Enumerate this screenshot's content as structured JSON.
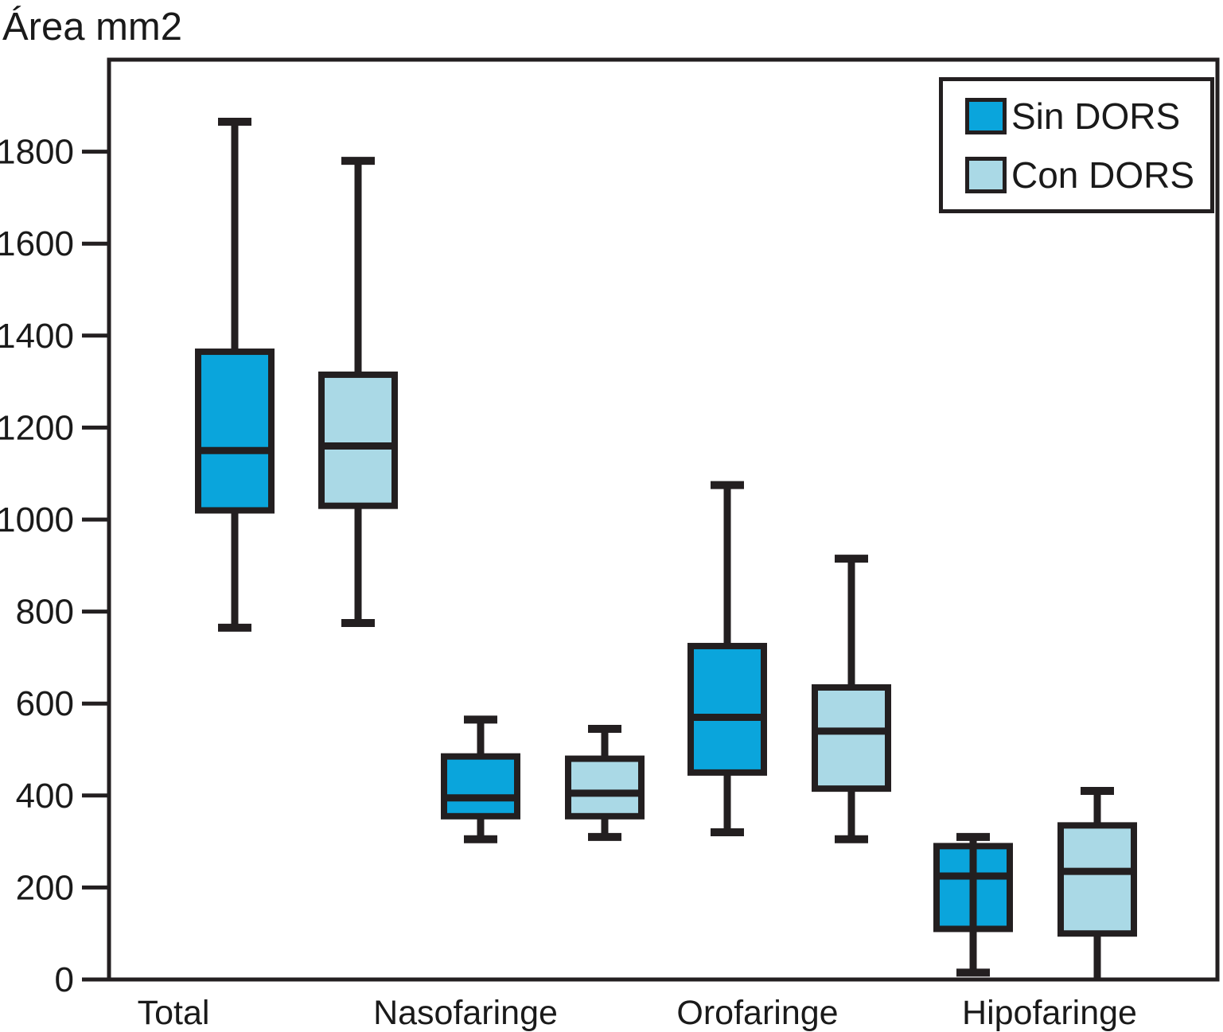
{
  "chart_data": {
    "type": "boxplot",
    "title": "Área mm2",
    "ylabel": "Área mm2",
    "xlabel": "",
    "categories": [
      "Total",
      "Nasofaringe",
      "Orofaringe",
      "Hipofaringe"
    ],
    "series": [
      {
        "name": "Sin DORS",
        "color": "#0aa5dc",
        "boxes": [
          {
            "category": "Total",
            "low": 765,
            "q1": 1020,
            "median": 1150,
            "q3": 1365,
            "high": 1865
          },
          {
            "category": "Nasofaringe",
            "low": 305,
            "q1": 355,
            "median": 395,
            "q3": 485,
            "high": 565
          },
          {
            "category": "Orofaringe",
            "low": 320,
            "q1": 450,
            "median": 570,
            "q3": 725,
            "high": 1075
          },
          {
            "category": "Hipofaringe",
            "low": 15,
            "q1": 110,
            "median": 225,
            "q3": 290,
            "high": 310,
            "whisker_over_box": true
          }
        ]
      },
      {
        "name": "Con DORS",
        "color": "#aad9e6",
        "boxes": [
          {
            "category": "Total",
            "low": 775,
            "q1": 1030,
            "median": 1160,
            "q3": 1315,
            "high": 1780
          },
          {
            "category": "Nasofaringe",
            "low": 310,
            "q1": 355,
            "median": 405,
            "q3": 480,
            "high": 545
          },
          {
            "category": "Orofaringe",
            "low": 305,
            "q1": 415,
            "median": 540,
            "q3": 635,
            "high": 915
          },
          {
            "category": "Hipofaringe",
            "low": 0,
            "q1": 100,
            "median": 235,
            "q3": 335,
            "high": 410,
            "hide_low_cap": true
          }
        ]
      }
    ],
    "ylim": [
      0,
      2000
    ],
    "yticks": [
      0,
      200,
      400,
      600,
      800,
      1000,
      1200,
      1400,
      1600,
      1800
    ],
    "grid": false,
    "legend_position": "top-right",
    "stroke_color": "#231f20",
    "text_color": "#1a1a1a"
  }
}
